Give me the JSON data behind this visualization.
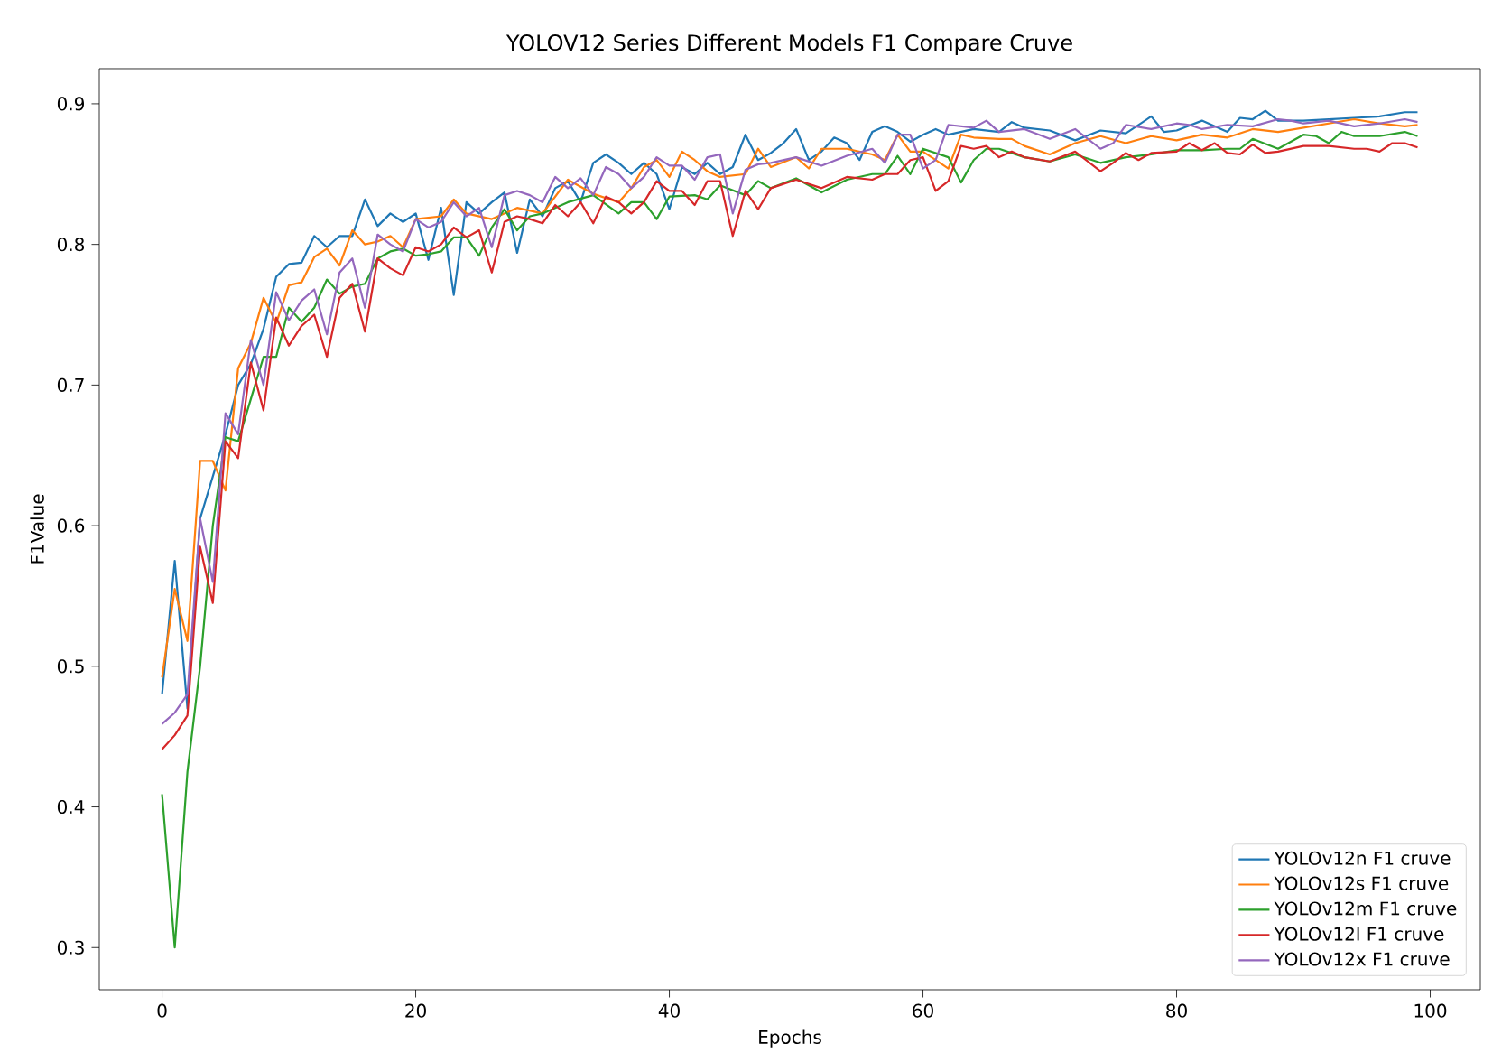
{
  "chart_data": {
    "type": "line",
    "title": "YOLOV12 Series Different Models F1 Compare Cruve",
    "xlabel": "Epochs",
    "ylabel": "F1Value",
    "xlim": [
      -4.95,
      103.95
    ],
    "ylim": [
      0.27,
      0.925
    ],
    "xticks": [
      0,
      20,
      40,
      60,
      80,
      100
    ],
    "yticks": [
      0.3,
      0.4,
      0.5,
      0.6,
      0.7,
      0.8,
      0.9
    ],
    "legend": "bottom right",
    "grid": false,
    "marker": "none",
    "line_style": "solid",
    "series": [
      {
        "name": "YOLOv12n F1 cruve",
        "color": "#1f77b4",
        "x": [
          0,
          1,
          2,
          3,
          4,
          5,
          6,
          7,
          8,
          9,
          10,
          11,
          12,
          13,
          14,
          15,
          16,
          17,
          18,
          19,
          20,
          21,
          22,
          23,
          24,
          25,
          26,
          27,
          28,
          29,
          30,
          31,
          32,
          33,
          34,
          35,
          36,
          37,
          38,
          39,
          40,
          41,
          42,
          43,
          44,
          45,
          46,
          47,
          48,
          49,
          50,
          51,
          52,
          53,
          54,
          55,
          56,
          57,
          58,
          59,
          60,
          61,
          62,
          64,
          66,
          67,
          68,
          70,
          72,
          74,
          76,
          78,
          79,
          80,
          82,
          84,
          85,
          86,
          87,
          88,
          90,
          92,
          94,
          96,
          98,
          99
        ],
        "values": [
          0.48,
          0.575,
          0.47,
          0.605,
          0.635,
          0.665,
          0.7,
          0.715,
          0.74,
          0.777,
          0.786,
          0.787,
          0.806,
          0.798,
          0.806,
          0.806,
          0.832,
          0.813,
          0.822,
          0.816,
          0.822,
          0.789,
          0.826,
          0.764,
          0.83,
          0.822,
          0.83,
          0.837,
          0.794,
          0.832,
          0.82,
          0.84,
          0.845,
          0.83,
          0.858,
          0.864,
          0.858,
          0.85,
          0.858,
          0.85,
          0.825,
          0.855,
          0.85,
          0.858,
          0.85,
          0.855,
          0.878,
          0.86,
          0.865,
          0.872,
          0.882,
          0.86,
          0.866,
          0.876,
          0.872,
          0.86,
          0.88,
          0.884,
          0.88,
          0.873,
          0.878,
          0.882,
          0.878,
          0.882,
          0.88,
          0.887,
          0.883,
          0.881,
          0.874,
          0.881,
          0.879,
          0.891,
          0.88,
          0.881,
          0.888,
          0.88,
          0.89,
          0.889,
          0.895,
          0.888,
          0.888,
          0.889,
          0.89,
          0.891,
          0.894,
          0.894
        ]
      },
      {
        "name": "YOLOv12s F1 cruve",
        "color": "#ff7f0e",
        "x": [
          0,
          1,
          2,
          3,
          4,
          5,
          6,
          7,
          8,
          9,
          10,
          11,
          12,
          13,
          14,
          15,
          16,
          17,
          18,
          19,
          20,
          22,
          23,
          24,
          26,
          28,
          30,
          32,
          34,
          36,
          37,
          38,
          39,
          40,
          41,
          42,
          43,
          44,
          46,
          47,
          48,
          50,
          51,
          52,
          54,
          56,
          57,
          58,
          59,
          60,
          61,
          62,
          63,
          64,
          66,
          67,
          68,
          70,
          72,
          74,
          76,
          78,
          80,
          82,
          84,
          86,
          88,
          90,
          92,
          94,
          96,
          98,
          99
        ],
        "values": [
          0.492,
          0.555,
          0.518,
          0.646,
          0.646,
          0.625,
          0.712,
          0.73,
          0.762,
          0.744,
          0.771,
          0.773,
          0.791,
          0.797,
          0.785,
          0.81,
          0.8,
          0.802,
          0.806,
          0.798,
          0.818,
          0.82,
          0.832,
          0.822,
          0.818,
          0.826,
          0.822,
          0.846,
          0.836,
          0.83,
          0.84,
          0.855,
          0.86,
          0.848,
          0.866,
          0.86,
          0.852,
          0.848,
          0.85,
          0.868,
          0.855,
          0.862,
          0.854,
          0.868,
          0.868,
          0.864,
          0.86,
          0.878,
          0.866,
          0.866,
          0.86,
          0.854,
          0.878,
          0.876,
          0.875,
          0.875,
          0.87,
          0.864,
          0.872,
          0.877,
          0.872,
          0.877,
          0.874,
          0.878,
          0.876,
          0.882,
          0.88,
          0.883,
          0.886,
          0.889,
          0.886,
          0.884,
          0.885
        ]
      },
      {
        "name": "YOLOv12m F1 cruve",
        "color": "#2ca02c",
        "x": [
          0,
          1,
          2,
          3,
          4,
          5,
          6,
          7,
          8,
          9,
          10,
          11,
          12,
          13,
          14,
          15,
          16,
          17,
          18,
          19,
          20,
          21,
          22,
          23,
          24,
          25,
          26,
          27,
          28,
          29,
          30,
          32,
          34,
          36,
          37,
          38,
          39,
          40,
          42,
          43,
          44,
          46,
          47,
          48,
          50,
          51,
          52,
          54,
          56,
          57,
          58,
          59,
          60,
          62,
          63,
          64,
          65,
          66,
          68,
          70,
          72,
          74,
          76,
          78,
          80,
          82,
          84,
          85,
          86,
          88,
          90,
          91,
          92,
          93,
          94,
          96,
          98,
          99
        ],
        "values": [
          0.409,
          0.3,
          0.425,
          0.5,
          0.6,
          0.663,
          0.66,
          0.69,
          0.72,
          0.72,
          0.755,
          0.745,
          0.755,
          0.775,
          0.765,
          0.77,
          0.772,
          0.79,
          0.795,
          0.797,
          0.792,
          0.793,
          0.795,
          0.805,
          0.805,
          0.792,
          0.812,
          0.825,
          0.81,
          0.82,
          0.822,
          0.83,
          0.835,
          0.822,
          0.83,
          0.83,
          0.818,
          0.834,
          0.835,
          0.832,
          0.842,
          0.835,
          0.845,
          0.84,
          0.847,
          0.842,
          0.837,
          0.846,
          0.85,
          0.85,
          0.863,
          0.85,
          0.868,
          0.862,
          0.844,
          0.86,
          0.868,
          0.868,
          0.862,
          0.859,
          0.864,
          0.858,
          0.862,
          0.864,
          0.867,
          0.867,
          0.868,
          0.868,
          0.875,
          0.868,
          0.878,
          0.877,
          0.872,
          0.88,
          0.877,
          0.877,
          0.88,
          0.877
        ]
      },
      {
        "name": "YOLOv12l F1 cruve",
        "color": "#d62728",
        "x": [
          0,
          1,
          2,
          3,
          4,
          5,
          6,
          7,
          8,
          9,
          10,
          11,
          12,
          13,
          14,
          15,
          16,
          17,
          18,
          19,
          20,
          21,
          22,
          23,
          24,
          25,
          26,
          27,
          28,
          29,
          30,
          31,
          32,
          33,
          34,
          35,
          36,
          37,
          38,
          39,
          40,
          41,
          42,
          43,
          44,
          45,
          46,
          47,
          48,
          50,
          52,
          54,
          56,
          57,
          58,
          59,
          60,
          61,
          62,
          63,
          64,
          65,
          66,
          67,
          68,
          70,
          72,
          74,
          75,
          76,
          77,
          78,
          80,
          81,
          82,
          83,
          84,
          85,
          86,
          87,
          88,
          90,
          92,
          94,
          95,
          96,
          97,
          98,
          99
        ],
        "values": [
          0.441,
          0.451,
          0.465,
          0.585,
          0.545,
          0.66,
          0.648,
          0.716,
          0.682,
          0.748,
          0.728,
          0.742,
          0.75,
          0.72,
          0.762,
          0.772,
          0.738,
          0.79,
          0.783,
          0.778,
          0.798,
          0.795,
          0.8,
          0.812,
          0.805,
          0.81,
          0.78,
          0.816,
          0.82,
          0.818,
          0.815,
          0.828,
          0.82,
          0.83,
          0.815,
          0.834,
          0.83,
          0.822,
          0.83,
          0.845,
          0.838,
          0.838,
          0.828,
          0.845,
          0.845,
          0.806,
          0.838,
          0.825,
          0.84,
          0.846,
          0.84,
          0.848,
          0.846,
          0.85,
          0.85,
          0.86,
          0.862,
          0.838,
          0.845,
          0.87,
          0.868,
          0.87,
          0.862,
          0.866,
          0.862,
          0.859,
          0.866,
          0.852,
          0.858,
          0.865,
          0.86,
          0.865,
          0.866,
          0.872,
          0.867,
          0.872,
          0.865,
          0.864,
          0.871,
          0.865,
          0.866,
          0.87,
          0.87,
          0.868,
          0.868,
          0.866,
          0.872,
          0.872,
          0.869
        ]
      },
      {
        "name": "YOLOv12x F1 cruve",
        "color": "#9467bd",
        "x": [
          0,
          1,
          2,
          3,
          4,
          5,
          6,
          7,
          8,
          9,
          10,
          11,
          12,
          13,
          14,
          15,
          16,
          17,
          18,
          19,
          20,
          21,
          22,
          23,
          24,
          25,
          26,
          27,
          28,
          29,
          30,
          31,
          32,
          33,
          34,
          35,
          36,
          37,
          38,
          39,
          40,
          41,
          42,
          43,
          44,
          45,
          46,
          47,
          48,
          50,
          52,
          54,
          56,
          57,
          58,
          59,
          60,
          61,
          62,
          64,
          65,
          66,
          68,
          70,
          72,
          74,
          75,
          76,
          78,
          80,
          81,
          82,
          84,
          86,
          88,
          89,
          90,
          92,
          94,
          96,
          98,
          99
        ],
        "values": [
          0.459,
          0.467,
          0.48,
          0.605,
          0.56,
          0.68,
          0.665,
          0.732,
          0.7,
          0.766,
          0.746,
          0.76,
          0.768,
          0.736,
          0.78,
          0.79,
          0.755,
          0.807,
          0.8,
          0.795,
          0.818,
          0.812,
          0.816,
          0.83,
          0.82,
          0.826,
          0.798,
          0.835,
          0.838,
          0.835,
          0.83,
          0.848,
          0.84,
          0.847,
          0.835,
          0.855,
          0.85,
          0.84,
          0.848,
          0.862,
          0.856,
          0.856,
          0.846,
          0.862,
          0.864,
          0.822,
          0.853,
          0.857,
          0.858,
          0.862,
          0.856,
          0.863,
          0.868,
          0.858,
          0.878,
          0.878,
          0.854,
          0.86,
          0.885,
          0.883,
          0.888,
          0.88,
          0.882,
          0.875,
          0.882,
          0.868,
          0.872,
          0.885,
          0.882,
          0.886,
          0.885,
          0.882,
          0.885,
          0.884,
          0.889,
          0.888,
          0.886,
          0.888,
          0.884,
          0.886,
          0.889,
          0.887
        ]
      }
    ]
  }
}
